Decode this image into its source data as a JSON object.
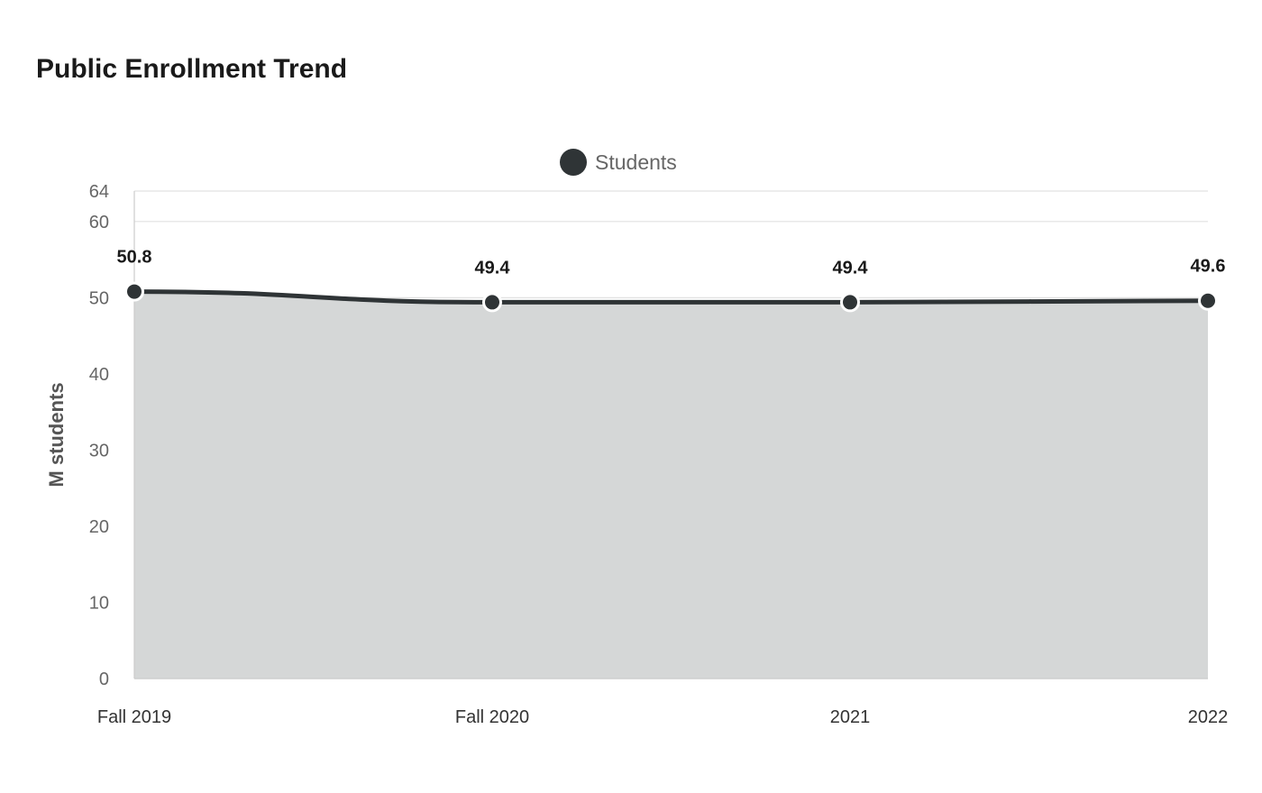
{
  "chart_data": {
    "type": "area",
    "title": "Public Enrollment Trend",
    "xlabel": "",
    "ylabel": "M students",
    "categories": [
      "Fall 2019",
      "Fall 2020",
      "2021",
      "2022"
    ],
    "series": [
      {
        "name": "Students",
        "values": [
          50.8,
          49.4,
          49.4,
          49.6
        ]
      }
    ],
    "data_labels": [
      "50.8",
      "49.4",
      "49.4",
      "49.6"
    ],
    "ylim": [
      0,
      64
    ],
    "yticks": [
      0,
      10,
      20,
      30,
      40,
      50,
      60,
      64
    ],
    "grid": true,
    "legend_position": "top-center",
    "colors": {
      "line": "#2f3436",
      "fill": "#d5d7d7",
      "marker_stroke": "#ffffff",
      "grid": "#e2e2e2"
    }
  }
}
